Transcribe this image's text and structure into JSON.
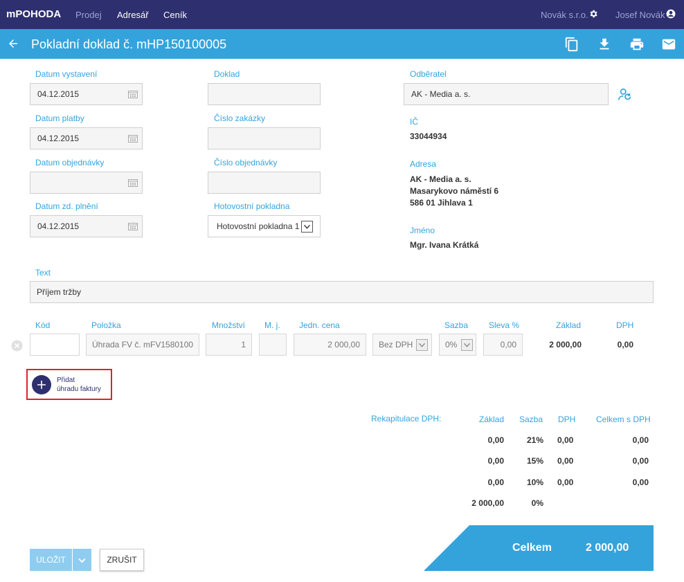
{
  "nav": {
    "brand": "mPOHODA",
    "items": [
      {
        "label": "Prodej"
      },
      {
        "label": "Adresář"
      },
      {
        "label": "Ceník"
      }
    ],
    "company": "Novák s.r.o.",
    "user": "Josef Novák"
  },
  "titlebar": {
    "title": "Pokladní doklad č. mHP150100005"
  },
  "form": {
    "datum_vystaveni": {
      "label": "Datum vystavení",
      "value": "04.12.2015"
    },
    "datum_platby": {
      "label": "Datum platby",
      "value": "04.12.2015"
    },
    "datum_objednavky": {
      "label": "Datum objednávky",
      "value": ""
    },
    "datum_zd_plneni": {
      "label": "Datum zd. plnění",
      "value": "04.12.2015"
    },
    "doklad": {
      "label": "Doklad",
      "value": ""
    },
    "cislo_zakazky": {
      "label": "Číslo zakázky",
      "value": ""
    },
    "cislo_objednavky": {
      "label": "Číslo objednávky",
      "value": ""
    },
    "hotovostni_pokladna": {
      "label": "Hotovostní pokladna",
      "value": "Hotovostní pokladna 1"
    },
    "text": {
      "label": "Text",
      "value": "Příjem tržby"
    }
  },
  "partner": {
    "odberatel_label": "Odběratel",
    "odberatel_value": "AK - Media a. s.",
    "ic_label": "IČ",
    "ic_value": "33044934",
    "adresa_label": "Adresa",
    "adresa_lines": [
      "AK - Media a. s.",
      "Masarykovo náměstí 6",
      "586 01 Jihlava 1"
    ],
    "jmeno_label": "Jméno",
    "jmeno_value": "Mgr. Ivana Krátká"
  },
  "items_table": {
    "headers": [
      "Kód",
      "Položka",
      "Množství",
      "M. j.",
      "Jedn. cena",
      "Sazba",
      "Sleva %",
      "Základ",
      "DPH"
    ],
    "row": {
      "kod": "",
      "polozka": "Úhrada FV č. mFV1580100",
      "mnozstvi": "1",
      "mj": "",
      "jedn_cena": "2 000,00",
      "typ": "Bez DPH",
      "sazba": "0%",
      "sleva": "0,00",
      "zaklad": "2 000,00",
      "dph": "0,00"
    }
  },
  "add_button": {
    "line1": "Přidat",
    "line2": "úhradu faktury"
  },
  "recap": {
    "title": "Rekapitulace DPH:",
    "headers": [
      "Základ",
      "Sazba",
      "DPH",
      "Celkem s DPH"
    ],
    "rows": [
      {
        "zaklad": "0,00",
        "sazba": "21%",
        "dph": "0,00",
        "celkem": "0,00"
      },
      {
        "zaklad": "0,00",
        "sazba": "15%",
        "dph": "0,00",
        "celkem": "0,00"
      },
      {
        "zaklad": "0,00",
        "sazba": "10%",
        "dph": "0,00",
        "celkem": "0,00"
      },
      {
        "zaklad": "2 000,00",
        "sazba": "0%",
        "dph": "",
        "celkem": ""
      }
    ]
  },
  "total": {
    "label": "Celkem",
    "value": "2 000,00"
  },
  "actions": {
    "save": "ULOŽIT",
    "cancel": "ZRUŠIT"
  },
  "colors": {
    "nav_bg": "#2e2f6e",
    "accent": "#34a3dc",
    "highlight_border": "#d9232a"
  }
}
